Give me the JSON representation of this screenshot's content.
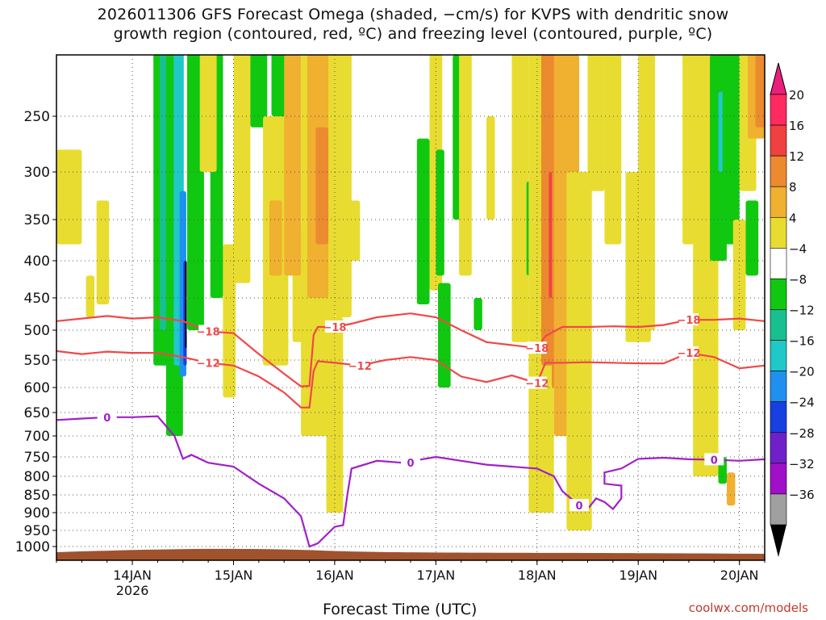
{
  "title_line1": "2026011306 GFS Forecast Omega (shaded, −cm/s) for KVPS with dendritic snow",
  "title_line2": "growth region (contoured, red, ºC) and freezing level (contoured, purple, ºC)",
  "credit": "coolwx.com/models",
  "chart_data": {
    "type": "heatmap",
    "title": "2026011306 GFS Forecast Omega (shaded, −cm/s) for KVPS with dendritic snow growth region (contoured, red, ºC) and freezing level (contoured, purple, ºC)",
    "xlabel": "Forecast Time (UTC)",
    "ylabel": "",
    "x_range_hours": [
      0,
      168
    ],
    "x_ticks": [
      {
        "hour": 18,
        "label": "14JAN",
        "sublabel": "2026"
      },
      {
        "hour": 42,
        "label": "15JAN"
      },
      {
        "hour": 66,
        "label": "16JAN"
      },
      {
        "hour": 90,
        "label": "17JAN"
      },
      {
        "hour": 114,
        "label": "18JAN"
      },
      {
        "hour": 138,
        "label": "19JAN"
      },
      {
        "hour": 162,
        "label": "20JAN"
      }
    ],
    "y_axis": "pressure (hPa)",
    "y_range": [
      1020,
      200
    ],
    "y_ticks": [
      "250",
      "300",
      "350",
      "400",
      "450",
      "500",
      "550",
      "600",
      "650",
      "700",
      "750",
      "800",
      "850",
      "900",
      "950",
      "1000"
    ],
    "colorbar": {
      "labels": [
        "20",
        "16",
        "12",
        "8",
        "4",
        "−4",
        "−8",
        "−12",
        "−16",
        "−20",
        "−24",
        "−28",
        "−32",
        "−36"
      ],
      "colors": [
        "#ff2a60",
        "#f04040",
        "#ec8a30",
        "#f0b030",
        "#e8dc30",
        "#ffffff",
        "#10c810",
        "#18c090",
        "#20c8c8",
        "#2090f0",
        "#1840e0",
        "#7020c8",
        "#a010c8",
        "#a0a0a0"
      ],
      "top_arrow_color": "#e8207a",
      "bottom_arrow_color": "#000000"
    },
    "contours": [
      {
        "name": "-18 ºC",
        "color": "#f04848",
        "label": "−18",
        "points": [
          [
            0,
            486
          ],
          [
            6,
            482
          ],
          [
            12,
            478
          ],
          [
            18,
            482
          ],
          [
            24,
            480
          ],
          [
            30,
            486
          ],
          [
            33,
            494
          ],
          [
            36,
            502
          ],
          [
            42,
            505
          ],
          [
            48,
            540
          ],
          [
            54,
            575
          ],
          [
            58,
            598
          ],
          [
            60,
            597
          ],
          [
            61,
            508
          ],
          [
            62,
            495
          ],
          [
            66,
            495
          ],
          [
            70,
            490
          ],
          [
            76,
            480
          ],
          [
            84,
            474
          ],
          [
            90,
            480
          ],
          [
            96,
            500
          ],
          [
            102,
            520
          ],
          [
            108,
            525
          ],
          [
            114,
            530
          ],
          [
            116,
            510
          ],
          [
            120,
            495
          ],
          [
            126,
            495
          ],
          [
            132,
            494
          ],
          [
            138,
            495
          ],
          [
            144,
            492
          ],
          [
            150,
            484
          ],
          [
            156,
            484
          ],
          [
            162,
            482
          ],
          [
            168,
            486
          ]
        ],
        "label_hours": [
          36,
          66,
          114,
          150
        ]
      },
      {
        "name": "-12 ºC",
        "color": "#f04848",
        "label": "−12",
        "points": [
          [
            0,
            535
          ],
          [
            6,
            540
          ],
          [
            12,
            536
          ],
          [
            18,
            538
          ],
          [
            24,
            538
          ],
          [
            30,
            545
          ],
          [
            36,
            555
          ],
          [
            42,
            560
          ],
          [
            48,
            580
          ],
          [
            54,
            610
          ],
          [
            58,
            640
          ],
          [
            60,
            640
          ],
          [
            61,
            570
          ],
          [
            62,
            552
          ],
          [
            66,
            555
          ],
          [
            72,
            560
          ],
          [
            78,
            550
          ],
          [
            84,
            545
          ],
          [
            90,
            550
          ],
          [
            96,
            580
          ],
          [
            102,
            590
          ],
          [
            108,
            578
          ],
          [
            114,
            592
          ],
          [
            116,
            555
          ],
          [
            120,
            555
          ],
          [
            126,
            554
          ],
          [
            132,
            555
          ],
          [
            138,
            556
          ],
          [
            144,
            556
          ],
          [
            150,
            538
          ],
          [
            156,
            545
          ],
          [
            162,
            565
          ],
          [
            168,
            560
          ]
        ],
        "label_hours": [
          36,
          72,
          114,
          150
        ]
      },
      {
        "name": "0 ºC",
        "color": "#a020c8",
        "label": "0",
        "points": [
          [
            0,
            666
          ],
          [
            6,
            663
          ],
          [
            12,
            660
          ],
          [
            18,
            660
          ],
          [
            24,
            658
          ],
          [
            28,
            700
          ],
          [
            30,
            755
          ],
          [
            32,
            745
          ],
          [
            36,
            765
          ],
          [
            42,
            775
          ],
          [
            48,
            820
          ],
          [
            54,
            860
          ],
          [
            58,
            910
          ],
          [
            60,
            1000
          ],
          [
            62,
            990
          ],
          [
            66,
            940
          ],
          [
            68,
            935
          ],
          [
            69,
            850
          ],
          [
            70,
            780
          ],
          [
            76,
            760
          ],
          [
            82,
            765
          ],
          [
            90,
            750
          ],
          [
            96,
            760
          ],
          [
            102,
            770
          ],
          [
            108,
            775
          ],
          [
            114,
            780
          ],
          [
            118,
            800
          ],
          [
            120,
            840
          ],
          [
            124,
            880
          ],
          [
            126,
            890
          ],
          [
            128,
            860
          ],
          [
            130,
            870
          ],
          [
            132,
            890
          ],
          [
            134,
            860
          ],
          [
            134,
            825
          ],
          [
            130,
            820
          ],
          [
            130,
            790
          ],
          [
            134,
            780
          ],
          [
            138,
            755
          ],
          [
            144,
            752
          ],
          [
            150,
            756
          ],
          [
            156,
            757
          ],
          [
            162,
            760
          ],
          [
            168,
            756
          ]
        ],
        "label_hours": [
          12,
          84,
          124,
          156
        ]
      }
    ]
  }
}
